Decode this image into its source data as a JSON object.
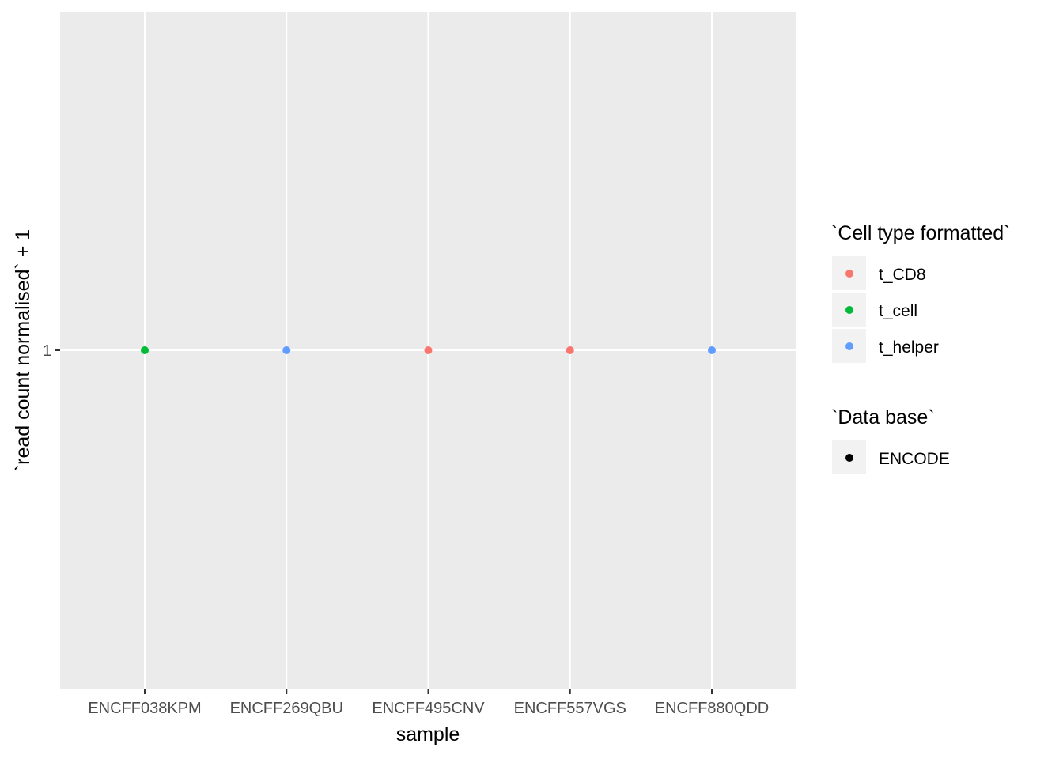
{
  "chart_data": {
    "type": "scatter",
    "xlabel": "sample",
    "ylabel": "`read count normalised` + 1",
    "categories": [
      "ENCFF038KPM",
      "ENCFF269QBU",
      "ENCFF495CNV",
      "ENCFF557VGS",
      "ENCFF880QDD"
    ],
    "y_ticks": [
      "1"
    ],
    "y_scale": "log",
    "grid": true,
    "points": [
      {
        "x": "ENCFF038KPM",
        "y": 1,
        "cell_type": "t_cell",
        "database": "ENCODE"
      },
      {
        "x": "ENCFF269QBU",
        "y": 1,
        "cell_type": "t_helper",
        "database": "ENCODE"
      },
      {
        "x": "ENCFF495CNV",
        "y": 1,
        "cell_type": "t_CD8",
        "database": "ENCODE"
      },
      {
        "x": "ENCFF557VGS",
        "y": 1,
        "cell_type": "t_CD8",
        "database": "ENCODE"
      },
      {
        "x": "ENCFF880QDD",
        "y": 1,
        "cell_type": "t_helper",
        "database": "ENCODE"
      }
    ],
    "legend_placement": "right",
    "legends": [
      {
        "title": "`Cell type formatted`",
        "entries": [
          {
            "label": "t_CD8",
            "color": "#F8766D"
          },
          {
            "label": "t_cell",
            "color": "#00BA38"
          },
          {
            "label": "t_helper",
            "color": "#619CFF"
          }
        ]
      },
      {
        "title": "`Data base`",
        "entries": [
          {
            "label": "ENCODE",
            "color": "#000000"
          }
        ]
      }
    ]
  },
  "colors": {
    "panel_background": "#EBEBEB",
    "grid": "#FFFFFF",
    "legend_key_background": "#F2F2F2"
  }
}
